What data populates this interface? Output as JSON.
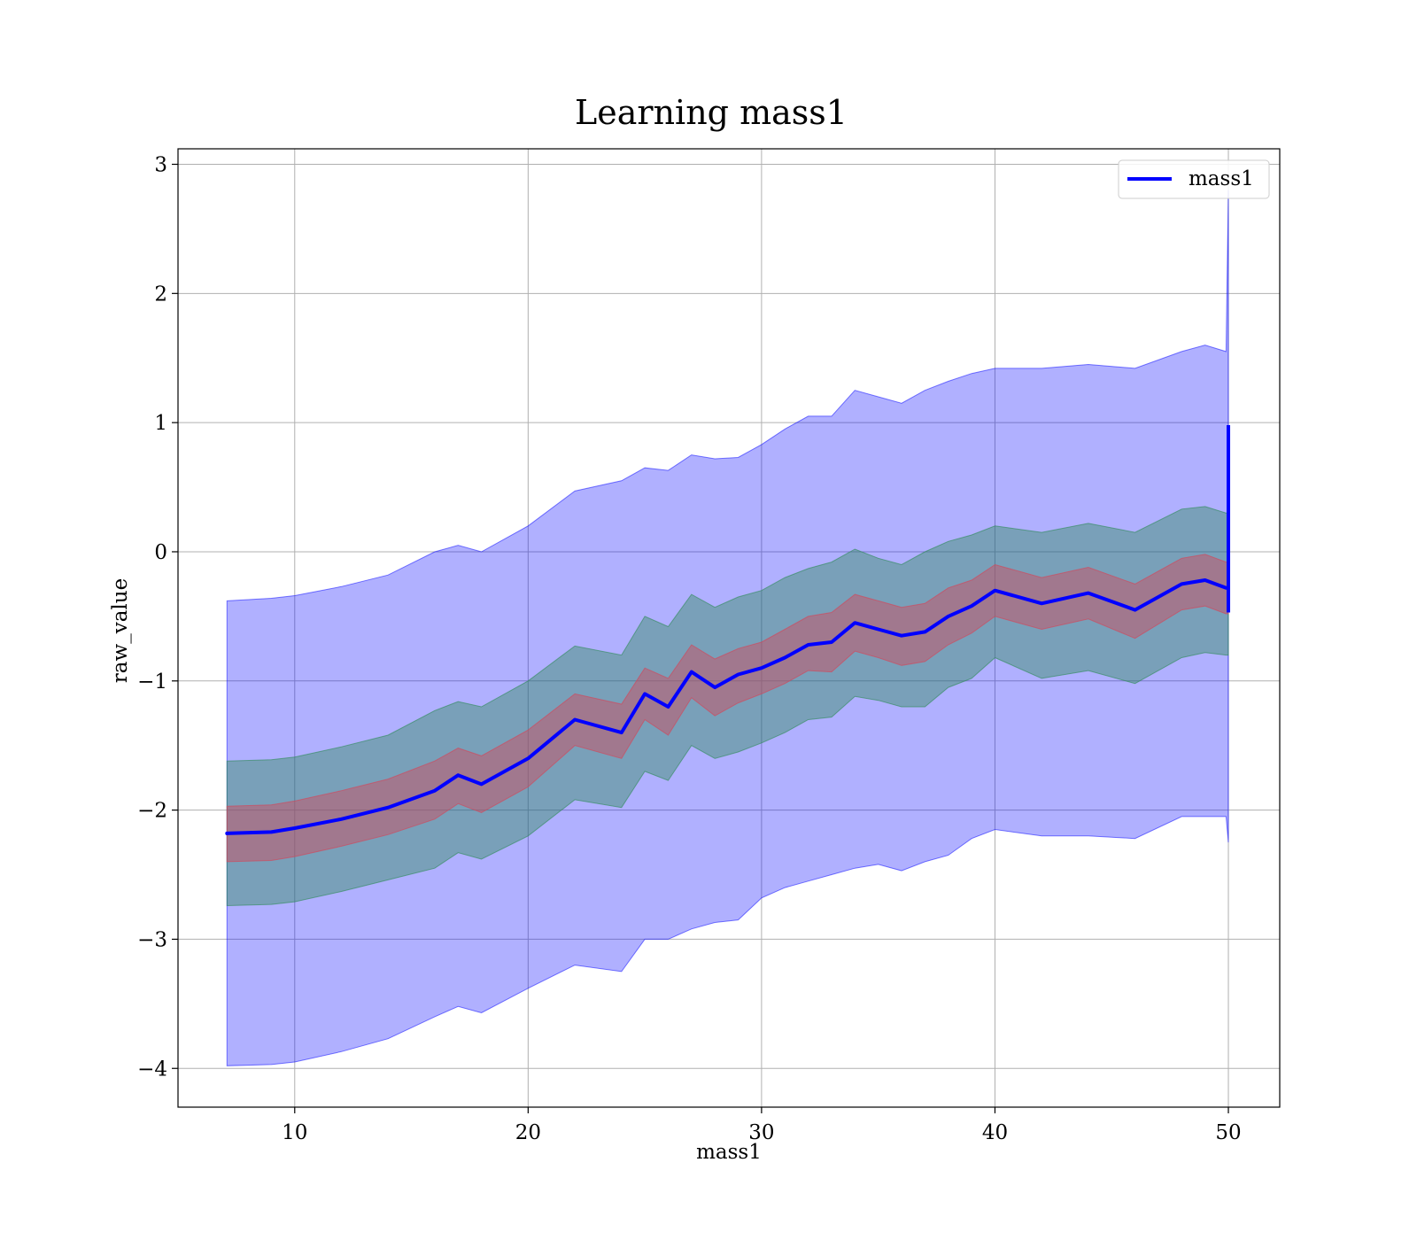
{
  "chart_data": {
    "type": "area",
    "title": "Learning mass1",
    "xlabel": "mass1",
    "ylabel": "raw_value",
    "xlim": [
      5,
      52.2
    ],
    "ylim": [
      -4.3,
      3.12
    ],
    "xticks": [
      10,
      20,
      30,
      40,
      50
    ],
    "xtick_labels": [
      "10",
      "20",
      "30",
      "40",
      "50"
    ],
    "yticks": [
      -4,
      -3,
      -2,
      -1,
      0,
      1,
      2,
      3
    ],
    "ytick_labels": [
      "−4",
      "−3",
      "−2",
      "−1",
      "0",
      "1",
      "2",
      "3"
    ],
    "grid": true,
    "legend": {
      "position": "upper-right",
      "entries": [
        "mass1"
      ]
    },
    "x": [
      7.1,
      9,
      10,
      12,
      14,
      16,
      17,
      18,
      20,
      22,
      24,
      25,
      26,
      27,
      28,
      29,
      30,
      31,
      32,
      33,
      34,
      35,
      36,
      37,
      38,
      39,
      40,
      42,
      44,
      46,
      48,
      49,
      49.9
    ],
    "series": [
      {
        "name": "mass1",
        "color": "#0000ff",
        "values": [
          -2.18,
          -2.17,
          -2.14,
          -2.07,
          -1.98,
          -1.85,
          -1.73,
          -1.8,
          -1.6,
          -1.3,
          -1.4,
          -1.1,
          -1.2,
          -0.93,
          -1.05,
          -0.95,
          -0.9,
          -0.82,
          -0.72,
          -0.7,
          -0.55,
          -0.6,
          -0.65,
          -0.62,
          -0.5,
          -0.42,
          -0.3,
          -0.4,
          -0.32,
          -0.45,
          -0.25,
          -0.22,
          -0.28
        ]
      }
    ],
    "bands": [
      {
        "color": "#0000ff",
        "opacity": 0.31,
        "upper": [
          -0.38,
          -0.36,
          -0.34,
          -0.27,
          -0.18,
          0.0,
          0.05,
          0.0,
          0.2,
          0.47,
          0.55,
          0.65,
          0.63,
          0.75,
          0.72,
          0.73,
          0.83,
          0.95,
          1.05,
          1.05,
          1.25,
          1.2,
          1.15,
          1.25,
          1.32,
          1.38,
          1.42,
          1.42,
          1.45,
          1.42,
          1.55,
          1.6,
          1.55
        ],
        "lower": [
          -3.98,
          -3.97,
          -3.95,
          -3.87,
          -3.77,
          -3.6,
          -3.52,
          -3.57,
          -3.38,
          -3.2,
          -3.25,
          -3.0,
          -3.0,
          -2.92,
          -2.87,
          -2.85,
          -2.68,
          -2.6,
          -2.55,
          -2.5,
          -2.45,
          -2.42,
          -2.47,
          -2.4,
          -2.35,
          -2.22,
          -2.15,
          -2.2,
          -2.2,
          -2.22,
          -2.05,
          -2.05,
          -2.05
        ]
      },
      {
        "color": "#2e8b57",
        "opacity": 0.42,
        "upper": [
          -1.62,
          -1.61,
          -1.59,
          -1.51,
          -1.42,
          -1.23,
          -1.16,
          -1.2,
          -1.0,
          -0.73,
          -0.8,
          -0.5,
          -0.58,
          -0.33,
          -0.43,
          -0.35,
          -0.3,
          -0.2,
          -0.13,
          -0.08,
          0.02,
          -0.05,
          -0.1,
          0.0,
          0.08,
          0.13,
          0.2,
          0.15,
          0.22,
          0.15,
          0.33,
          0.35,
          0.3
        ],
        "lower": [
          -2.74,
          -2.73,
          -2.71,
          -2.63,
          -2.54,
          -2.45,
          -2.33,
          -2.38,
          -2.2,
          -1.92,
          -1.98,
          -1.7,
          -1.77,
          -1.5,
          -1.6,
          -1.55,
          -1.48,
          -1.4,
          -1.3,
          -1.28,
          -1.12,
          -1.15,
          -1.2,
          -1.2,
          -1.05,
          -0.98,
          -0.82,
          -0.98,
          -0.92,
          -1.02,
          -0.82,
          -0.78,
          -0.8
        ]
      },
      {
        "color": "#d2465a",
        "opacity": 0.45,
        "upper": [
          -1.97,
          -1.96,
          -1.93,
          -1.85,
          -1.76,
          -1.62,
          -1.52,
          -1.58,
          -1.38,
          -1.1,
          -1.18,
          -0.9,
          -0.98,
          -0.72,
          -0.83,
          -0.75,
          -0.7,
          -0.6,
          -0.5,
          -0.47,
          -0.33,
          -0.38,
          -0.43,
          -0.4,
          -0.28,
          -0.22,
          -0.1,
          -0.2,
          -0.12,
          -0.25,
          -0.05,
          -0.02,
          -0.08
        ],
        "lower": [
          -2.4,
          -2.39,
          -2.36,
          -2.28,
          -2.19,
          -2.07,
          -1.95,
          -2.02,
          -1.82,
          -1.5,
          -1.6,
          -1.3,
          -1.42,
          -1.13,
          -1.27,
          -1.17,
          -1.1,
          -1.02,
          -0.92,
          -0.93,
          -0.77,
          -0.82,
          -0.88,
          -0.85,
          -0.72,
          -0.63,
          -0.5,
          -0.6,
          -0.52,
          -0.67,
          -0.45,
          -0.42,
          -0.48
        ]
      }
    ],
    "end_spike": {
      "x": 50,
      "line_low": -0.47,
      "line_high": 0.98,
      "band_low": -2.25,
      "band_high": 2.8
    }
  }
}
